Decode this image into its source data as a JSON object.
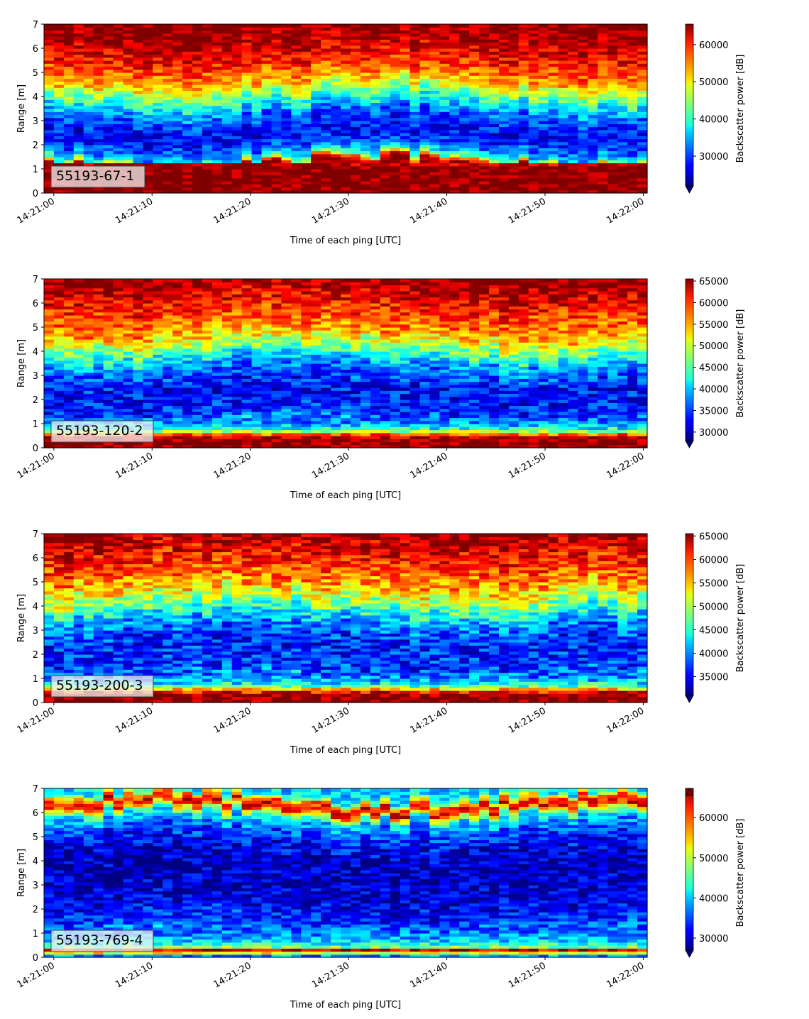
{
  "chart_data": [
    {
      "type": "heatmap",
      "tag": "55193-67-1",
      "xlabel": "Time of each ping [UTC]",
      "ylabel": "Range [m]",
      "xticks": [
        "14:21:00",
        "14:21:10",
        "14:21:20",
        "14:21:30",
        "14:21:40",
        "14:21:50",
        "14:22:00"
      ],
      "xlim": [
        "14:20:59",
        "14:22:00.4"
      ],
      "ylim": [
        0,
        7
      ],
      "yticks": [
        0,
        1,
        2,
        3,
        4,
        5,
        6,
        7
      ],
      "colormap": "jet",
      "colorbar": {
        "label": "Backscatter power [dB]",
        "ticks": [
          30000,
          40000,
          50000,
          60000
        ],
        "range": [
          22000,
          65500
        ],
        "extend": "min"
      },
      "profile_keypoints": [
        [
          0,
          65500
        ],
        [
          0.18,
          65500
        ],
        [
          0.35,
          65500
        ],
        [
          1.1,
          65500
        ],
        [
          1.25,
          60000
        ],
        [
          1.4,
          44000
        ],
        [
          1.6,
          37000
        ],
        [
          1.9,
          31000
        ],
        [
          2.5,
          27000
        ],
        [
          3.2,
          31000
        ],
        [
          4.0,
          42000
        ],
        [
          4.8,
          54000
        ],
        [
          5.6,
          60000
        ],
        [
          6.3,
          63000
        ],
        [
          7.0,
          65500
        ]
      ]
    },
    {
      "type": "heatmap",
      "tag": "55193-120-2",
      "xlabel": "Time of each ping [UTC]",
      "ylabel": "Range [m]",
      "xticks": [
        "14:21:00",
        "14:21:10",
        "14:21:20",
        "14:21:30",
        "14:21:40",
        "14:21:50",
        "14:22:00"
      ],
      "xlim": [
        "14:20:59",
        "14:22:00.4"
      ],
      "ylim": [
        0,
        7
      ],
      "yticks": [
        0,
        1,
        2,
        3,
        4,
        5,
        6,
        7
      ],
      "colormap": "jet",
      "colorbar": {
        "label": "Backscatter power [dB]",
        "ticks": [
          30000,
          35000,
          40000,
          45000,
          50000,
          55000,
          60000,
          65000
        ],
        "range": [
          28000,
          65500
        ],
        "extend": "min"
      },
      "profile_keypoints": [
        [
          0,
          65500
        ],
        [
          0.12,
          65500
        ],
        [
          0.4,
          65500
        ],
        [
          0.55,
          58000
        ],
        [
          0.75,
          44000
        ],
        [
          1.0,
          38000
        ],
        [
          1.5,
          34000
        ],
        [
          2.5,
          33000
        ],
        [
          3.3,
          37000
        ],
        [
          4.0,
          45000
        ],
        [
          4.8,
          55000
        ],
        [
          5.6,
          59000
        ],
        [
          6.3,
          62000
        ],
        [
          7.0,
          65500
        ]
      ]
    },
    {
      "type": "heatmap",
      "tag": "55193-200-3",
      "xlabel": "Time of each ping [UTC]",
      "ylabel": "Range [m]",
      "xticks": [
        "14:21:00",
        "14:21:10",
        "14:21:20",
        "14:21:30",
        "14:21:40",
        "14:21:50",
        "14:22:00"
      ],
      "xlim": [
        "14:20:59",
        "14:22:00.4"
      ],
      "ylim": [
        0,
        7
      ],
      "yticks": [
        0,
        1,
        2,
        3,
        4,
        5,
        6,
        7
      ],
      "colormap": "jet",
      "colorbar": {
        "label": "Backscatter power [dB]",
        "ticks": [
          35000,
          40000,
          45000,
          50000,
          55000,
          60000,
          65000
        ],
        "range": [
          31000,
          65500
        ],
        "extend": "min"
      },
      "profile_keypoints": [
        [
          0,
          65500
        ],
        [
          0.12,
          65500
        ],
        [
          0.35,
          65500
        ],
        [
          0.5,
          58000
        ],
        [
          0.7,
          46000
        ],
        [
          1.0,
          40000
        ],
        [
          1.5,
          37000
        ],
        [
          2.5,
          36000
        ],
        [
          3.3,
          40000
        ],
        [
          4.0,
          47000
        ],
        [
          4.8,
          55000
        ],
        [
          5.6,
          59000
        ],
        [
          6.3,
          62000
        ],
        [
          7.0,
          65000
        ]
      ]
    },
    {
      "type": "heatmap",
      "tag": "55193-769-4",
      "xlabel": "Time of each ping [UTC]",
      "ylabel": "Range [m]",
      "xticks": [
        "14:21:00",
        "14:21:10",
        "14:21:20",
        "14:21:30",
        "14:21:40",
        "14:21:50",
        "14:22:00"
      ],
      "xlim": [
        "14:20:59",
        "14:22:00.4"
      ],
      "ylim": [
        0,
        7
      ],
      "yticks": [
        0,
        1,
        2,
        3,
        4,
        5,
        6,
        7
      ],
      "colormap": "jet",
      "colorbar": {
        "label": "Backscatter power [dB]",
        "ticks": [
          30000,
          40000,
          50000,
          60000
        ],
        "range": [
          27000,
          65500
        ],
        "extend": "both"
      },
      "profile_keypoints": [
        [
          0,
          38000
        ],
        [
          0.15,
          38000
        ],
        [
          0.22,
          62000
        ],
        [
          0.32,
          62000
        ],
        [
          0.45,
          44000
        ],
        [
          0.8,
          38000
        ],
        [
          1.4,
          34000
        ],
        [
          2.5,
          30000
        ],
        [
          4.0,
          29000
        ],
        [
          5.0,
          33000
        ],
        [
          5.6,
          38000
        ],
        [
          5.9,
          44000
        ],
        [
          6.1,
          55000
        ],
        [
          6.25,
          63000
        ],
        [
          6.5,
          56000
        ],
        [
          6.7,
          42000
        ],
        [
          7.0,
          40000
        ]
      ]
    }
  ]
}
